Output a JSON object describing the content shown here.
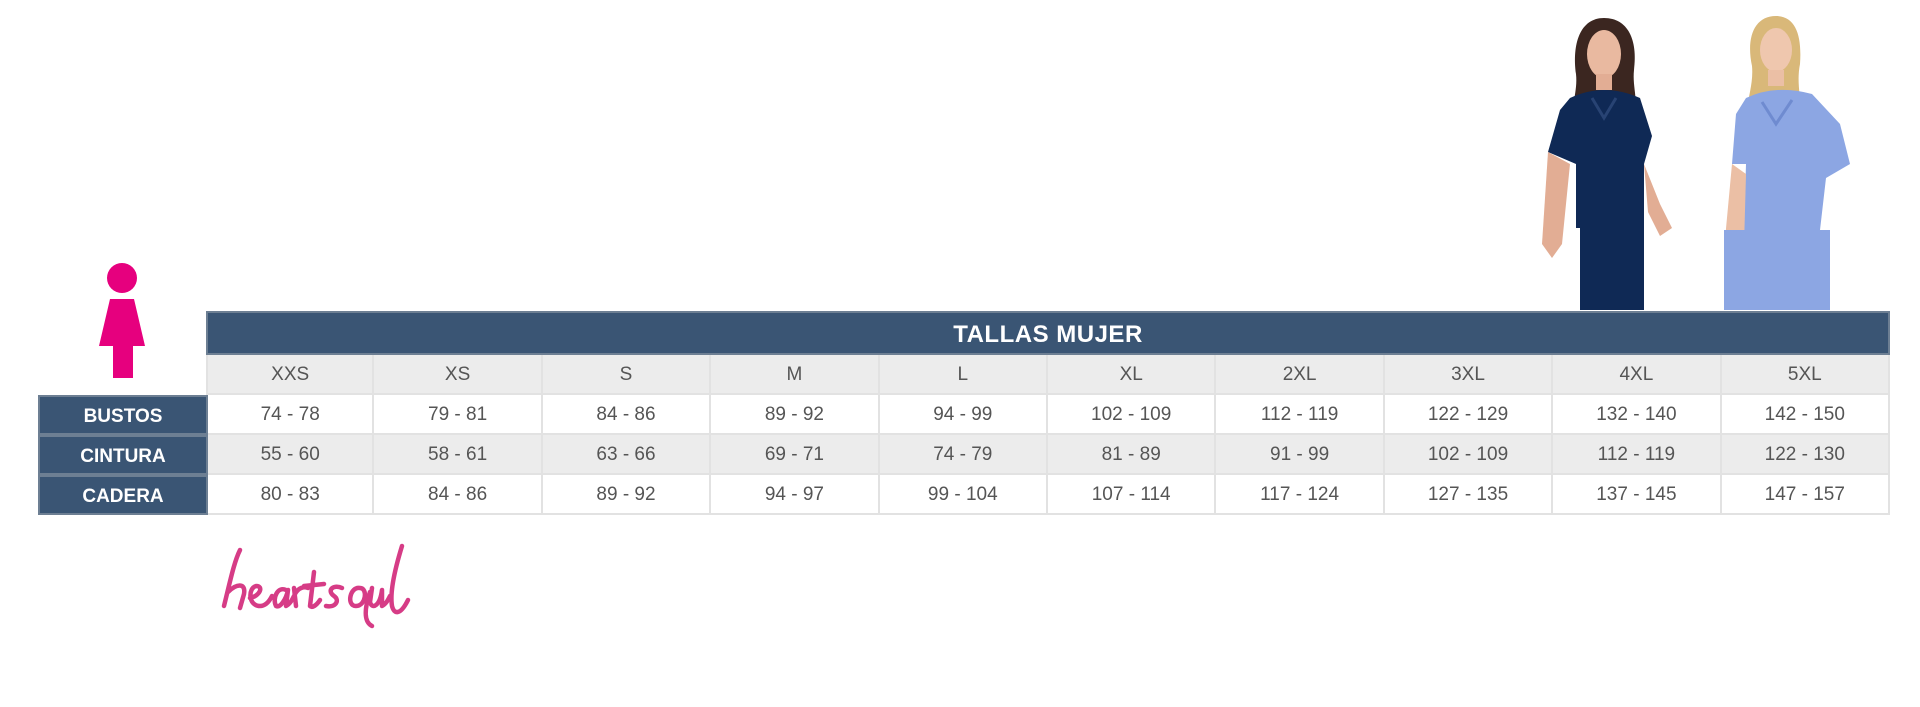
{
  "table": {
    "title": "TALLAS MUJER",
    "sizes": [
      "XXS",
      "XS",
      "S",
      "M",
      "L",
      "XL",
      "2XL",
      "3XL",
      "4XL",
      "5XL"
    ],
    "rows": [
      {
        "label": "BUSTOS",
        "values": [
          "74 - 78",
          "79 - 81",
          "84 - 86",
          "89 - 92",
          "94 - 99",
          "102 - 109",
          "112 - 119",
          "122 - 129",
          "132 - 140",
          "142 - 150"
        ]
      },
      {
        "label": "CINTURA",
        "values": [
          "55 - 60",
          "58 - 61",
          "63 - 66",
          "69 - 71",
          "74 - 79",
          "81 - 89",
          "91 - 99",
          "102 - 109",
          "112 - 119",
          "122 - 130"
        ]
      },
      {
        "label": "CADERA",
        "values": [
          "80 - 83",
          "84 - 86",
          "89 - 92",
          "94 - 97",
          "99 - 104",
          "107 - 114",
          "117 - 124",
          "127 - 135",
          "137 - 145",
          "147 - 157"
        ]
      }
    ]
  },
  "brand": {
    "logo_text": "heartsoul"
  },
  "colors": {
    "header": "#3a5574",
    "accent": "#e6007e",
    "brand": "#d63c86",
    "alt_row": "#ececec"
  },
  "icons": {
    "woman": "woman-figure-icon"
  }
}
